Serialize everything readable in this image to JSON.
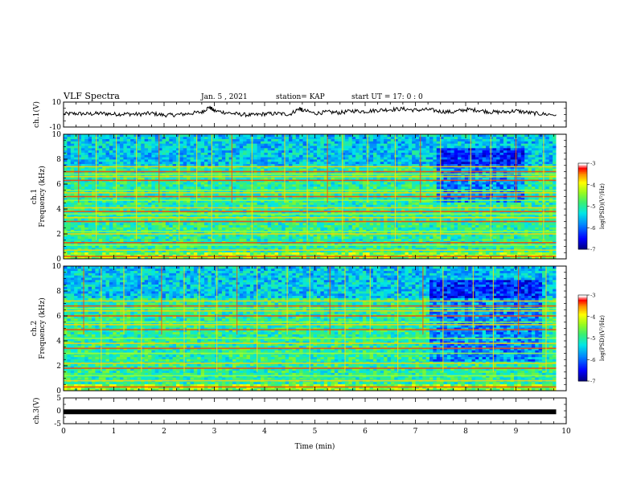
{
  "header": {
    "title": "VLF Spectra",
    "date": "Jan. 5 , 2021",
    "station": "station= KAP",
    "start": "start  UT =   17: 0  : 0"
  },
  "colors": {
    "trace": "#000000",
    "colormap": [
      "#00007f",
      "#0000ff",
      "#0080ff",
      "#00ffff",
      "#40ff80",
      "#80ff00",
      "#ffff00",
      "#ff8000",
      "#ff0000",
      "#ffffff"
    ]
  },
  "chart_data": [
    {
      "id": "ch1-waveform",
      "type": "line",
      "ylabel": "ch.1(V)",
      "ylim": [
        -10,
        10
      ],
      "yticks": [
        -10,
        10
      ],
      "xlim": [
        0,
        10
      ],
      "series": [
        {
          "x": [
            0,
            0.25,
            0.5,
            0.75,
            1,
            1.25,
            1.5,
            1.75,
            2,
            2.25,
            2.5,
            2.75,
            2.9,
            3,
            3.25,
            3.5,
            3.75,
            4,
            4.25,
            4.5,
            4.7,
            4.75,
            5,
            5.25,
            5.5,
            5.75,
            6,
            6.25,
            6.5,
            6.75,
            7,
            7.25,
            7.5,
            7.75,
            8,
            8.25,
            8.5,
            8.75,
            9,
            9.25,
            9.5,
            9.8
          ],
          "y": [
            0.5,
            0.8,
            0.5,
            1.0,
            0.3,
            0.5,
            0.2,
            1.0,
            -0.5,
            -0.2,
            0.8,
            2.0,
            6.0,
            3.0,
            1.5,
            0.2,
            -0.5,
            0.5,
            0.8,
            0.2,
            5.0,
            3.5,
            1.0,
            2.0,
            1.5,
            3.0,
            2.5,
            3.5,
            4.0,
            4.5,
            3.5,
            4.0,
            2.5,
            2.0,
            4.0,
            3.5,
            2.0,
            2.0,
            3.0,
            1.5,
            0.5,
            -0.2
          ]
        }
      ]
    },
    {
      "id": "ch1-spectrogram",
      "type": "heatmap",
      "ylabel_top": "ch.1",
      "ylabel": "Frequency (kHz)",
      "ylim": [
        0,
        10
      ],
      "yticks": [
        0,
        2,
        4,
        6,
        8,
        10
      ],
      "xlim": [
        0,
        10
      ],
      "colorbar": {
        "label": "log(PSD)(V²/Hz)",
        "range": [
          -7,
          -3
        ],
        "ticks": [
          -7,
          -6,
          -5,
          -4,
          -3
        ]
      },
      "bands_khz": [
        0.2,
        0.7,
        1.1,
        1.3,
        2.0,
        2.2,
        3.0,
        3.3,
        3.6,
        3.8,
        4.1,
        4.7,
        5.0,
        5.3,
        5.5,
        6.3,
        6.6,
        6.8,
        7.0,
        7.4
      ],
      "sferic_minutes": [
        0.3,
        0.65,
        1.05,
        1.45,
        1.9,
        2.3,
        2.65,
        2.95,
        3.35,
        3.75,
        4.4,
        4.85,
        5.25,
        5.55,
        6.05,
        6.6,
        7.1,
        7.5,
        8.1,
        8.5,
        9.0,
        9.55
      ],
      "quiet_region": {
        "x_min": [
          7.4,
          9.2
        ],
        "y_khz": [
          4.5,
          9.0
        ]
      }
    },
    {
      "id": "ch2-spectrogram",
      "type": "heatmap",
      "ylabel_top": "ch.2",
      "ylabel": "Frequency (kHz)",
      "ylim": [
        0,
        10
      ],
      "yticks": [
        0,
        2,
        4,
        6,
        8,
        10
      ],
      "xlim": [
        0,
        10
      ],
      "colorbar": {
        "label": "log(PSD)(V²/Hz)",
        "range": [
          -7,
          -3
        ],
        "ticks": [
          -7,
          -6,
          -5,
          -4,
          -3
        ]
      },
      "bands_khz": [
        0.3,
        0.8,
        1.2,
        1.8,
        2.2,
        3.0,
        3.4,
        3.8,
        4.2,
        4.9,
        5.3,
        5.5,
        6.0,
        6.4,
        6.6,
        6.8,
        7.2
      ],
      "sferic_minutes": [
        0.4,
        0.75,
        1.2,
        1.55,
        1.95,
        2.4,
        2.7,
        3.05,
        3.45,
        3.85,
        4.45,
        4.9,
        5.3,
        5.6,
        6.1,
        6.65,
        7.15,
        7.55,
        8.15,
        8.55,
        9.05,
        9.6
      ],
      "quiet_region": {
        "x_min": [
          7.3,
          9.5
        ],
        "y_khz": [
          2.3,
          9.0
        ]
      }
    },
    {
      "id": "ch3-waveform",
      "type": "line",
      "ylabel": "ch.3(V)",
      "ylim": [
        -5,
        5
      ],
      "yticks": [
        -5,
        0,
        5
      ],
      "xlim": [
        0,
        10
      ],
      "xticks": [
        0,
        1,
        2,
        3,
        4,
        5,
        6,
        7,
        8,
        9,
        10
      ],
      "xlabel": "Time  (min)",
      "series": [
        {
          "x": [
            0,
            9.8
          ],
          "y": [
            -0.4,
            -0.4
          ]
        }
      ]
    }
  ]
}
